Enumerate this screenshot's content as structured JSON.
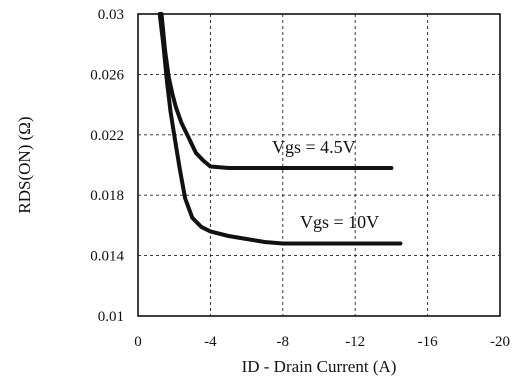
{
  "chart_data": {
    "type": "line",
    "xlabel": "ID - Drain Current (A)",
    "ylabel": "RDS(ON) (Ω)",
    "xlim": [
      0,
      -20
    ],
    "ylim": [
      0.01,
      0.03
    ],
    "x_ticks": [
      0,
      -4,
      -8,
      -12,
      -16,
      -20
    ],
    "x_tick_labels": [
      "0",
      "-4",
      "-8",
      "-12",
      "-16",
      "-20"
    ],
    "y_ticks": [
      0.01,
      0.014,
      0.018,
      0.022,
      0.026,
      0.03
    ],
    "y_tick_labels": [
      "0.01",
      "0.014",
      "0.018",
      "0.022",
      "0.026",
      "0.03"
    ],
    "grid": true,
    "series": [
      {
        "name": "Vgs = 4.5V",
        "x": [
          -1.3,
          -1.5,
          -1.7,
          -1.9,
          -2.1,
          -2.4,
          -2.8,
          -3.2,
          -3.6,
          -4.0,
          -5.0,
          -6.0,
          -7.0,
          -8.0,
          -9.0,
          -10.0,
          -11.0,
          -12.0,
          -13.0,
          -14.0
        ],
        "y": [
          0.03,
          0.0275,
          0.0258,
          0.0247,
          0.0238,
          0.0228,
          0.0218,
          0.0208,
          0.0203,
          0.0199,
          0.0198,
          0.0198,
          0.0198,
          0.0198,
          0.0198,
          0.0198,
          0.0198,
          0.0198,
          0.0198,
          0.0198
        ]
      },
      {
        "name": "Vgs = 10V",
        "x": [
          -1.2,
          -1.4,
          -1.6,
          -1.8,
          -2.0,
          -2.3,
          -2.6,
          -3.0,
          -3.5,
          -4.0,
          -5.0,
          -6.0,
          -7.0,
          -8.0,
          -9.0,
          -10.0,
          -11.0,
          -12.0,
          -13.0,
          -14.0,
          -14.5
        ],
        "y": [
          0.03,
          0.028,
          0.0255,
          0.0235,
          0.022,
          0.0198,
          0.0178,
          0.0165,
          0.0159,
          0.0156,
          0.0153,
          0.0151,
          0.0149,
          0.0148,
          0.0148,
          0.0148,
          0.0148,
          0.0148,
          0.0148,
          0.0148,
          0.0148
        ]
      }
    ]
  }
}
